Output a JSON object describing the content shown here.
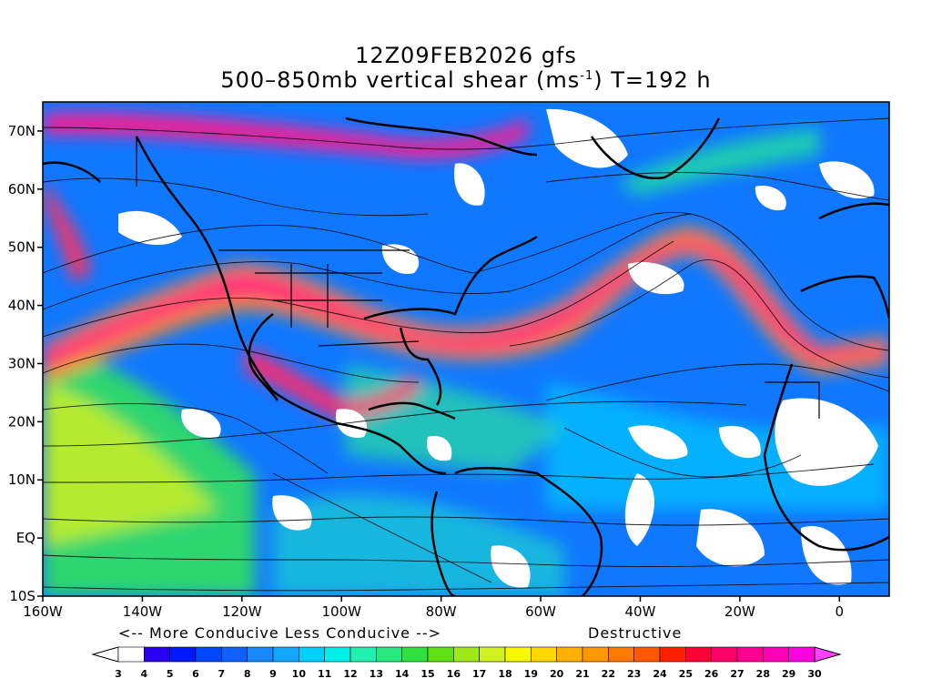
{
  "title": {
    "line1": "12Z09FEB2026 gfs",
    "line2_prefix": "500–850mb vertical shear (ms",
    "line2_sup": "-1",
    "line2_suffix": ") T=192 h"
  },
  "map": {
    "lon_min": -160,
    "lon_max": 10,
    "lat_min": -10,
    "lat_max": 75,
    "lat_labels": [
      {
        "lat": 70,
        "text": "70N"
      },
      {
        "lat": 60,
        "text": "60N"
      },
      {
        "lat": 50,
        "text": "50N"
      },
      {
        "lat": 40,
        "text": "40N"
      },
      {
        "lat": 30,
        "text": "30N"
      },
      {
        "lat": 20,
        "text": "20N"
      },
      {
        "lat": 10,
        "text": "10N"
      },
      {
        "lat": 0,
        "text": "EQ"
      },
      {
        "lat": -10,
        "text": "10S"
      }
    ],
    "lon_labels": [
      {
        "lon": -160,
        "text": "160W"
      },
      {
        "lon": -140,
        "text": "140W"
      },
      {
        "lon": -120,
        "text": "120W"
      },
      {
        "lon": -100,
        "text": "100W"
      },
      {
        "lon": -80,
        "text": "80W"
      },
      {
        "lon": -60,
        "text": "60W"
      },
      {
        "lon": -40,
        "text": "40W"
      },
      {
        "lon": -20,
        "text": "20W"
      },
      {
        "lon": 0,
        "text": "0"
      }
    ]
  },
  "captions": {
    "left": "<-- More Conducive   Less Conducive -->",
    "right": "Destructive"
  },
  "colorbar": {
    "labels": [
      "3",
      "4",
      "5",
      "6",
      "7",
      "8",
      "9",
      "10",
      "11",
      "12",
      "13",
      "14",
      "15",
      "16",
      "17",
      "18",
      "19",
      "20",
      "21",
      "22",
      "23",
      "24",
      "25",
      "26",
      "27",
      "28",
      "29",
      "30"
    ],
    "colors": [
      "#ffffff",
      "#2a00f0",
      "#0018ff",
      "#0048ff",
      "#1060ff",
      "#1888ff",
      "#10a8ff",
      "#00d0ff",
      "#00f0e8",
      "#20f0b0",
      "#28e880",
      "#30e040",
      "#60e010",
      "#a0e818",
      "#d0f020",
      "#f8f800",
      "#ffd800",
      "#ffb000",
      "#ff9800",
      "#ff7800",
      "#ff5800",
      "#ff2000",
      "#ff0038",
      "#ff0068",
      "#ff0090",
      "#ff00b8",
      "#ff00e0"
    ],
    "arrow_left_color": "#ffffff",
    "arrow_right_color": "#ff40ff"
  }
}
